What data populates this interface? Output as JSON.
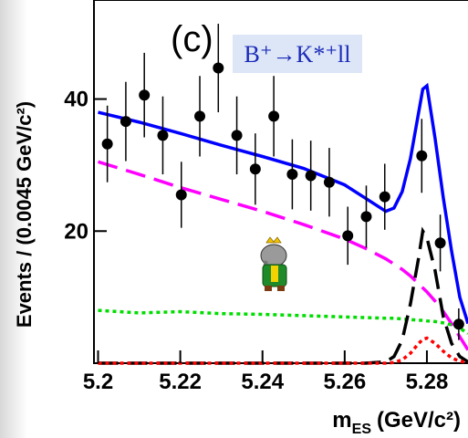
{
  "chart_data": {
    "type": "fit",
    "annotation": "(c)",
    "decay": "B⁺→K*⁺ll",
    "ylabel": "Events / (0.0045 GeV/c²)",
    "xlabel": {
      "main": "m",
      "sub": "ES",
      "unit": "(GeV/c²)"
    },
    "xlim": [
      5.199,
      5.29
    ],
    "ylim": [
      0,
      55
    ],
    "xticks": [
      5.2,
      5.22,
      5.24,
      5.26,
      5.28
    ],
    "yticks": [
      20,
      40
    ],
    "points": {
      "color": "#000000",
      "x": [
        5.20225,
        5.20675,
        5.21125,
        5.21575,
        5.22025,
        5.22475,
        5.22925,
        5.23375,
        5.23825,
        5.24275,
        5.24725,
        5.25175,
        5.25625,
        5.26075,
        5.26525,
        5.26975,
        5.27875,
        5.28325,
        5.28775
      ],
      "values": [
        33.2,
        36.6,
        40.6,
        34.5,
        25.5,
        37.4,
        44.7,
        34.5,
        29.4,
        37.4,
        28.6,
        28.4,
        27.4,
        19.3,
        22.2,
        25.2,
        31.4,
        18.2,
        5.9
      ],
      "errors": [
        5.8,
        6,
        6.4,
        5.9,
        5,
        6.1,
        6.7,
        5.9,
        5.4,
        6.1,
        5.3,
        5.3,
        5.2,
        4.4,
        4.7,
        5,
        5.6,
        4.3,
        2.4
      ]
    },
    "x": [
      5.2,
      5.21,
      5.22,
      5.23,
      5.24,
      5.25,
      5.26,
      5.265,
      5.27,
      5.272,
      5.274,
      5.276,
      5.278,
      5.279,
      5.28,
      5.282,
      5.284,
      5.286,
      5.288,
      5.29
    ],
    "series": [
      {
        "color": "#ff00ff",
        "style": "dashed",
        "values": [
          30.5,
          28.6,
          26.6,
          24.8,
          23,
          21,
          18.8,
          17.4,
          15.8,
          15,
          14.2,
          13.2,
          12,
          11.4,
          10.8,
          9.4,
          7.8,
          6,
          4,
          2
        ]
      },
      {
        "color": "#00dd00",
        "style": "dotted",
        "values": [
          8,
          7.6,
          7.8,
          7.5,
          7.4,
          7.2,
          7,
          6.9,
          6.8,
          6.8,
          6.7,
          6.6,
          6.5,
          6.5,
          6.4,
          6.3,
          6.1,
          5.8,
          5.3,
          4.5
        ]
      },
      {
        "color": "#000000",
        "style": "dashed",
        "values": [
          0,
          0,
          0,
          0,
          0,
          0,
          0,
          0,
          0.2,
          1,
          3.5,
          9,
          16,
          20,
          19,
          14,
          7,
          3,
          1,
          0.2
        ]
      },
      {
        "color": "#ff0000",
        "style": "dotted",
        "values": [
          0,
          0,
          0,
          0,
          0,
          0,
          0,
          0,
          0,
          0.1,
          0.5,
          1.5,
          3,
          3.6,
          3.8,
          3,
          1.8,
          0.8,
          0.3,
          0.1
        ]
      },
      {
        "color": "#0000ff",
        "style": "solid",
        "values": [
          38,
          36.5,
          34.8,
          33,
          31.3,
          29.5,
          27,
          25,
          23,
          23.5,
          26,
          31,
          38,
          41.5,
          42,
          34,
          25,
          17,
          10,
          6
        ]
      }
    ]
  }
}
